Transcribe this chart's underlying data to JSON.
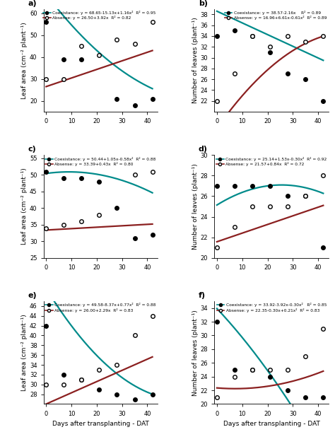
{
  "panels": [
    {
      "label": "a)",
      "ylabel": "Leaf area (cm⁻² plant⁻¹)",
      "ylim": [
        15,
        62
      ],
      "yticks": [
        20,
        30,
        40,
        50,
        60
      ],
      "coex_eq": "Coexistance: y = 68.65-15.13x+1.16x²  R² = 0.95",
      "abs_eq": "Absense: y = 26.50+3.92x  R² = 0.82",
      "coex_coeffs": [
        68.65,
        -15.13,
        1.16
      ],
      "abs_coeffs": [
        26.5,
        3.92,
        0
      ],
      "coex_data_x": [
        0,
        7,
        14,
        28,
        35,
        42
      ],
      "coex_data_y": [
        56,
        39,
        39,
        21,
        18,
        21
      ],
      "abs_data_x": [
        0,
        7,
        14,
        21,
        28,
        35,
        42
      ],
      "abs_data_y": [
        30,
        30,
        45,
        41,
        48,
        46,
        56
      ],
      "x_scale": 10
    },
    {
      "label": "b)",
      "ylabel": "Number of leaves (plant⁻¹)",
      "ylim": [
        20,
        39
      ],
      "yticks": [
        22,
        24,
        26,
        28,
        30,
        32,
        34,
        36,
        38
      ],
      "coex_eq": "Coexistance: y = 38.57-2.16x    R² = 0.89",
      "abs_eq": "Absense: y = 16.96+6.61x-0.61x²  R² = 0.89",
      "coex_coeffs": [
        38.57,
        -2.16,
        0
      ],
      "abs_coeffs": [
        16.96,
        6.61,
        -0.61
      ],
      "coex_data_x": [
        0,
        7,
        14,
        21,
        28,
        35,
        42
      ],
      "coex_data_y": [
        34,
        35,
        34,
        31,
        27,
        26,
        22
      ],
      "abs_data_x": [
        0,
        7,
        14,
        21,
        28,
        35,
        42
      ],
      "abs_data_y": [
        22,
        27,
        34,
        32,
        34,
        33,
        34
      ],
      "x_scale": 10
    },
    {
      "label": "c)",
      "ylabel": "Leaf area (cm⁻² plant⁻¹)",
      "ylim": [
        25,
        56
      ],
      "yticks": [
        25,
        30,
        35,
        40,
        45,
        50,
        55
      ],
      "coex_eq": "Coexistance: y = 50.44+1.05x-0.58x²  R² = 0.88",
      "abs_eq": "Absense: y = 33.39+0.43x  R² = 0.80",
      "coex_coeffs": [
        50.44,
        1.05,
        -0.58
      ],
      "abs_coeffs": [
        33.39,
        0.43,
        0
      ],
      "coex_data_x": [
        0,
        7,
        14,
        21,
        28,
        35,
        42
      ],
      "coex_data_y": [
        51,
        49,
        49,
        48,
        40,
        31,
        32
      ],
      "abs_data_x": [
        0,
        7,
        14,
        21,
        35,
        42
      ],
      "abs_data_y": [
        34,
        35,
        36,
        38,
        50,
        51
      ],
      "x_scale": 10
    },
    {
      "label": "d)",
      "ylabel": "Number of leaves (plant⁻¹)",
      "ylim": [
        20,
        30
      ],
      "yticks": [
        20,
        22,
        24,
        26,
        28,
        30
      ],
      "coex_eq": "Coexistance: y = 25.14+1.53x-0.30x²  R² = 0.92",
      "abs_eq": "Absense: y = 21.57+0.84x  R² = 0.72",
      "coex_coeffs": [
        25.14,
        1.53,
        -0.3
      ],
      "abs_coeffs": [
        21.57,
        0.84,
        0
      ],
      "coex_data_x": [
        0,
        7,
        14,
        21,
        28,
        35,
        42
      ],
      "coex_data_y": [
        27,
        27,
        27,
        27,
        26,
        26,
        21
      ],
      "abs_data_x": [
        0,
        7,
        14,
        21,
        28,
        35,
        42
      ],
      "abs_data_y": [
        21,
        23,
        25,
        25,
        25,
        26,
        28
      ],
      "x_scale": 10
    },
    {
      "label": "e)",
      "ylabel": "Leaf area (cm⁻² plant⁻¹)",
      "ylim": [
        26,
        47
      ],
      "yticks": [
        28,
        30,
        32,
        34,
        36,
        38,
        40,
        42,
        44,
        46
      ],
      "coex_eq": "Coexistance: y = 49.58-8.37x+0.77x²  R² = 0.88",
      "abs_eq": "Absense: y = 26.00+2.29x  R² = 0.83",
      "coex_coeffs": [
        49.58,
        -8.37,
        0.77
      ],
      "abs_coeffs": [
        26.0,
        2.29,
        0
      ],
      "coex_data_x": [
        0,
        7,
        14,
        21,
        28,
        35,
        42
      ],
      "coex_data_y": [
        42,
        32,
        31,
        29,
        28,
        27,
        28
      ],
      "abs_data_x": [
        0,
        7,
        14,
        21,
        28,
        35,
        42
      ],
      "abs_data_y": [
        30,
        30,
        31,
        33,
        34,
        40,
        44
      ],
      "x_scale": 10
    },
    {
      "label": "f)",
      "ylabel": "Number of leaves (plant⁻¹)",
      "ylim": [
        20,
        35
      ],
      "yticks": [
        20,
        22,
        24,
        26,
        28,
        30,
        32,
        34
      ],
      "coex_eq": "Coexistance: y = 33.92-3.92x-0.30x²   R² = 0.85",
      "abs_eq": "Absense: y = 22.35-0.30x+0.21x²  R² = 0.83",
      "coex_coeffs": [
        33.92,
        -3.92,
        -0.3
      ],
      "abs_coeffs": [
        22.35,
        -0.3,
        0.21
      ],
      "coex_data_x": [
        0,
        7,
        14,
        21,
        28,
        35,
        42
      ],
      "coex_data_y": [
        32,
        25,
        25,
        24,
        22,
        21,
        21
      ],
      "abs_data_x": [
        0,
        7,
        14,
        21,
        28,
        35,
        42
      ],
      "abs_data_y": [
        21,
        24,
        25,
        25,
        25,
        27,
        31
      ],
      "x_scale": 10
    }
  ],
  "coex_color": "#008B8B",
  "abs_color": "#8B2020",
  "xlabel": "Days after transplanting - DAT",
  "xlim": [
    -1,
    44
  ],
  "xticks": [
    0,
    10,
    20,
    30,
    40
  ]
}
